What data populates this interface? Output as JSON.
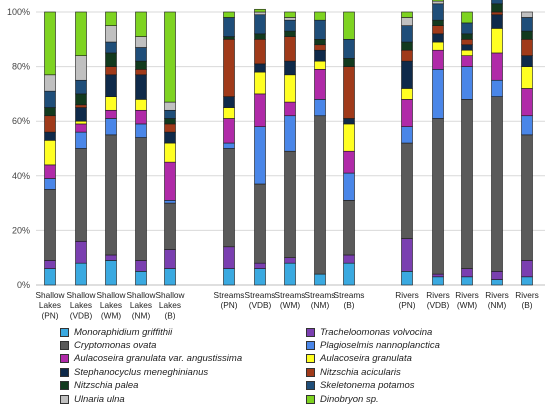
{
  "chart_data": {
    "type": "bar",
    "stacked": true,
    "ylim": [
      0,
      100
    ],
    "yticks": [
      "0%",
      "20%",
      "40%",
      "60%",
      "80%",
      "100%"
    ],
    "grid": true,
    "legend_position": "bottom",
    "categories": [
      [
        "Shallow",
        "Lakes",
        "(PN)"
      ],
      [
        "Shallow",
        "Lakes",
        "(VDB)"
      ],
      [
        "Shallow",
        "Lakes",
        "(WM)"
      ],
      [
        "Shallow",
        "Lakes",
        "(NM)"
      ],
      [
        "Shallow",
        "Lakes",
        "(B)"
      ],
      [
        "Streams",
        "(PN)"
      ],
      [
        "Streams",
        "(VDB)"
      ],
      [
        "Streams",
        "(WM)"
      ],
      [
        "Streams",
        "(NM)"
      ],
      [
        "Streams",
        "(B)"
      ],
      [
        "Rivers",
        "(PN)"
      ],
      [
        "Rivers",
        "(VDB)"
      ],
      [
        "Rivers",
        "(WM)"
      ],
      [
        "Rivers",
        "(NM)"
      ],
      [
        "Rivers",
        "(B)"
      ]
    ],
    "groups": [
      [
        0,
        1,
        2,
        3,
        4
      ],
      [
        5,
        6,
        7,
        8,
        9
      ],
      [
        10,
        11,
        12,
        13,
        14
      ]
    ],
    "series": [
      {
        "name": "Monoraphidium griffithii",
        "color": "#3aa9e0",
        "values": [
          6,
          8,
          9,
          5,
          6,
          6,
          6,
          8,
          4,
          8,
          5,
          3,
          3,
          2,
          3
        ]
      },
      {
        "name": "Tracheloomonas volvocina",
        "color": "#7a3fb0",
        "values": [
          3,
          8,
          2,
          4,
          7,
          8,
          2,
          2,
          0,
          3,
          12,
          1,
          3,
          3,
          6
        ]
      },
      {
        "name": "Cryptomonas ovata",
        "color": "#5a5a5a",
        "values": [
          26,
          34,
          44,
          45,
          17,
          36,
          29,
          39,
          58,
          20,
          35,
          57,
          62,
          64,
          46
        ]
      },
      {
        "name": "Plagioselmis nannoplanctica",
        "color": "#4a86e8",
        "values": [
          4,
          6,
          6,
          5,
          1,
          2,
          21,
          13,
          6,
          10,
          6,
          18,
          12,
          6,
          7
        ]
      },
      {
        "name": "Aulacoseira granulata var. angustissima",
        "color": "#b02aa8",
        "values": [
          5,
          3,
          3,
          5,
          14,
          9,
          12,
          5,
          11,
          8,
          10,
          7,
          4,
          10,
          10
        ]
      },
      {
        "name": "Aulacoseira granulata",
        "color": "#ffff22",
        "values": [
          9,
          1,
          5,
          4,
          7,
          4,
          8,
          10,
          3,
          10,
          4,
          3,
          2,
          9,
          8
        ]
      },
      {
        "name": "Stephanocyclus meneghinianus",
        "color": "#0f2a4a",
        "values": [
          3,
          5,
          8,
          9,
          4,
          4,
          3,
          5,
          4,
          2,
          10,
          3,
          2,
          5,
          4
        ]
      },
      {
        "name": "Nitzschia acicularis",
        "color": "#a03a1a",
        "values": [
          6,
          1,
          3,
          2,
          3,
          21,
          9,
          9,
          2,
          19,
          4,
          3,
          2,
          1,
          6
        ]
      },
      {
        "name": "Nitzschia palea",
        "color": "#123a1e",
        "values": [
          3,
          4,
          5,
          3,
          2,
          1,
          2,
          2,
          2,
          3,
          3,
          2,
          2,
          3,
          3
        ]
      },
      {
        "name": "Skeletonema potamos",
        "color": "#1f4e79",
        "values": [
          6,
          5,
          4,
          5,
          3,
          7,
          7,
          4,
          7,
          7,
          6,
          6,
          4,
          3,
          5
        ]
      },
      {
        "name": "Ulnaria ulna",
        "color": "#c0c0c0",
        "values": [
          6,
          9,
          6,
          4,
          3,
          0,
          1,
          1,
          0,
          0,
          3,
          1,
          0,
          0,
          2
        ]
      },
      {
        "name": "Dinobryon sp.",
        "color": "#7ed321",
        "values": [
          23,
          16,
          5,
          9,
          33,
          2,
          1,
          2,
          3,
          10,
          2,
          3,
          4,
          1,
          0
        ]
      }
    ],
    "legend_order": [
      "Monoraphidium griffithii",
      "Tracheloomonas volvocina",
      "Cryptomonas ovata",
      "Plagioselmis nannoplanctica",
      "Aulacoseira granulata var. angustissima",
      "Aulacoseira granulata",
      "Stephanocyclus meneghinianus",
      "Nitzschia acicularis",
      "Nitzschia palea",
      "Skeletonema potamos",
      "Ulnaria ulna",
      "Dinobryon sp."
    ]
  }
}
